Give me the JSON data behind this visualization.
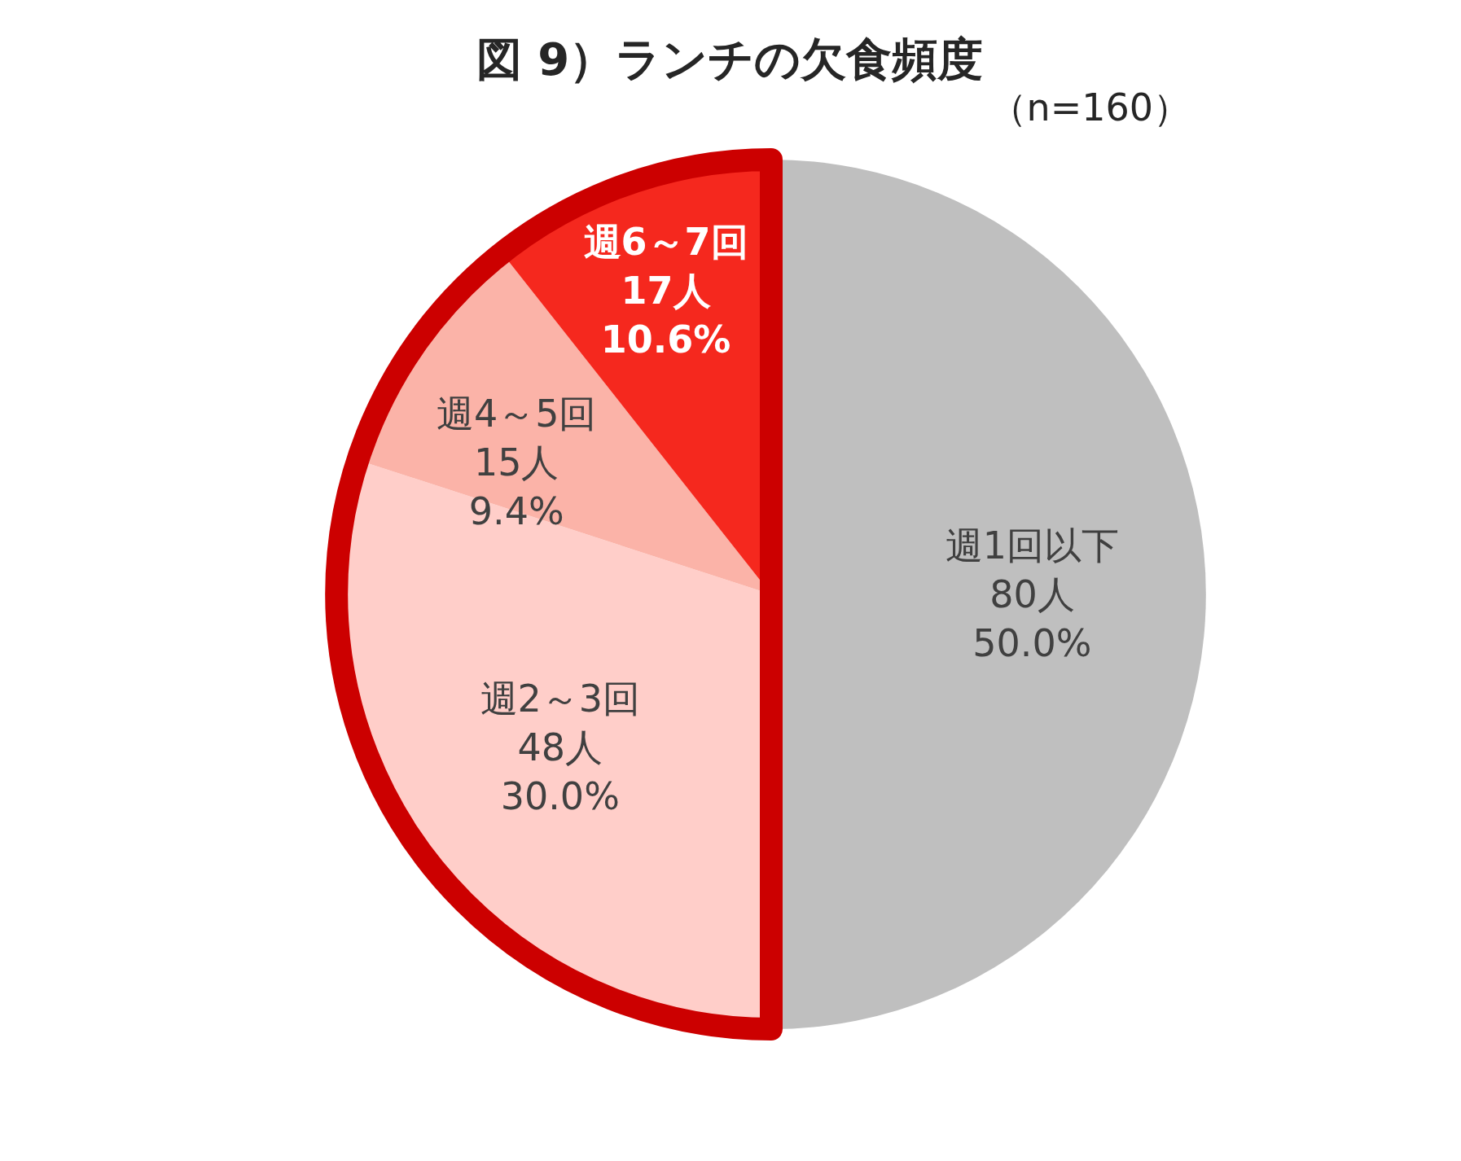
{
  "chart_data": {
    "type": "pie",
    "title": "図 9）ランチの欠食頻度",
    "subtitle": "（n=160）",
    "categories": [
      "週1回以下",
      "週2～3回",
      "週4～5回",
      "週6～7回"
    ],
    "values": [
      80,
      48,
      15,
      17
    ],
    "colors": [
      "#bfbfbf",
      "#ffcec9",
      "#fbb3a8",
      "#f5281e"
    ],
    "value_labels": [
      "80人\n50.0%",
      "48人\n30.0%",
      "15人\n9.4%",
      "17人\n10.6%"
    ]
  }
}
